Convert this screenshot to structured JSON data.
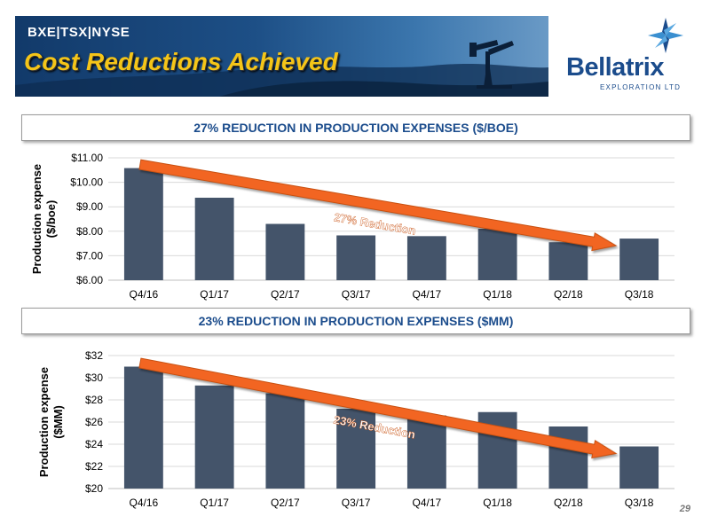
{
  "header": {
    "exchanges": "BXE|TSX|NYSE",
    "title": "Cost Reductions Achieved"
  },
  "logo": {
    "name": "Bellatrix",
    "subtitle": "EXPLORATION LTD"
  },
  "page_number": "29",
  "colors": {
    "bar": "#44546a",
    "arrow": "#f26522",
    "header_text": "#1b4c8c",
    "title_gold": "#f5c518"
  },
  "chart_data": [
    {
      "type": "bar",
      "title": "27% REDUCTION IN PRODUCTION EXPENSES ($/BOE)",
      "categories": [
        "Q4/16",
        "Q1/17",
        "Q2/17",
        "Q3/17",
        "Q4/17",
        "Q1/18",
        "Q2/18",
        "Q3/18"
      ],
      "values": [
        10.58,
        9.37,
        8.3,
        7.83,
        7.8,
        8.1,
        7.55,
        7.7
      ],
      "ylabel": "Production expense ($/boe)",
      "ylim": [
        6,
        11
      ],
      "yticks": [
        "$6.00",
        "$7.00",
        "$8.00",
        "$9.00",
        "$10.00",
        "$11.00"
      ],
      "annotation": "27% Reduction",
      "grid": true
    },
    {
      "type": "bar",
      "title": "23% REDUCTION IN PRODUCTION EXPENSES ($MM)",
      "categories": [
        "Q4/16",
        "Q1/17",
        "Q2/17",
        "Q3/17",
        "Q4/17",
        "Q1/18",
        "Q2/18",
        "Q3/18"
      ],
      "values": [
        31.0,
        29.3,
        28.6,
        27.2,
        26.6,
        26.9,
        25.6,
        23.8
      ],
      "ylabel": "Production expense ($MM)",
      "ylim": [
        20,
        32
      ],
      "yticks": [
        "$20",
        "$22",
        "$24",
        "$26",
        "$28",
        "$30",
        "$32"
      ],
      "annotation": "23% Reduction",
      "grid": true
    }
  ]
}
